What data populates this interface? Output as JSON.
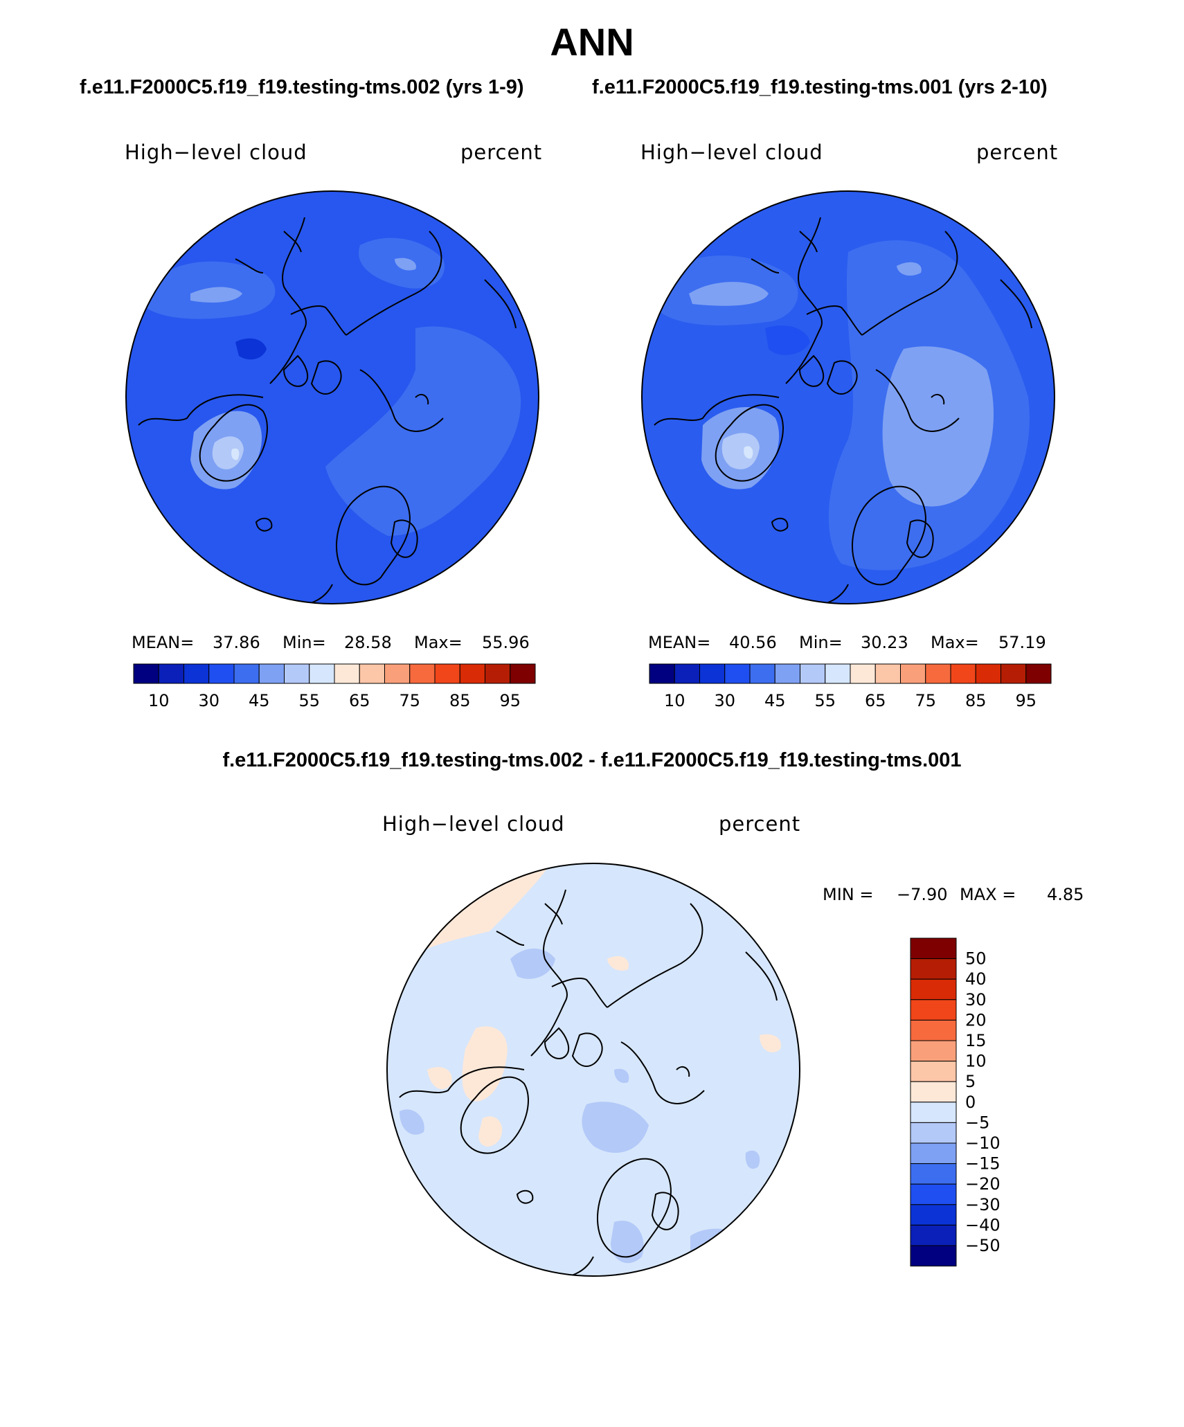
{
  "title": "ANN",
  "case_titles": {
    "left": "f.e11.F2000C5.f19_f19.testing-tms.002 (yrs 1-9)",
    "right": "f.e11.F2000C5.f19_f19.testing-tms.001 (yrs 2-10)"
  },
  "diff_title": "f.e11.F2000C5.f19_f19.testing-tms.002 - f.e11.F2000C5.f19_f19.testing-tms.001",
  "panels": [
    {
      "variable": "High−level cloud",
      "units": "percent",
      "stats": {
        "mean_label": "MEAN=",
        "mean": "37.86",
        "min_label": "Min=",
        "min": "28.58",
        "max_label": "Max=",
        "max": "55.96"
      },
      "colorbar_ticks": [
        "10",
        "30",
        "45",
        "55",
        "65",
        "75",
        "85",
        "95"
      ]
    },
    {
      "variable": "High−level cloud",
      "units": "percent",
      "stats": {
        "mean_label": "MEAN=",
        "mean": "40.56",
        "min_label": "Min=",
        "min": "30.23",
        "max_label": "Max=",
        "max": "57.19"
      },
      "colorbar_ticks": [
        "10",
        "30",
        "45",
        "55",
        "65",
        "75",
        "85",
        "95"
      ]
    }
  ],
  "diff_panel": {
    "variable": "High−level cloud",
    "units": "percent",
    "stats": {
      "min_label": "MIN =",
      "min": "−7.90",
      "max_label": "MAX =",
      "max": "4.85"
    },
    "colorbar_labels": [
      "50",
      "40",
      "30",
      "20",
      "15",
      "10",
      "5",
      "0",
      "−5",
      "−10",
      "−15",
      "−20",
      "−30",
      "−40",
      "−50"
    ]
  },
  "colors": {
    "abs_scale": [
      "#000080",
      "#0a20b8",
      "#0b33d6",
      "#1f4ff0",
      "#3d6ef0",
      "#7ea1f3",
      "#b3c9f8",
      "#d6e6fc",
      "#fde8d8",
      "#fcc6a8",
      "#f9a07a",
      "#f66a3e",
      "#f0461a",
      "#d92b06",
      "#b51e04",
      "#7e0000"
    ],
    "diff_scale_top_to_bottom": [
      "#7e0000",
      "#b51e04",
      "#d92b06",
      "#f0461a",
      "#f66a3e",
      "#f9a07a",
      "#fcc6a8",
      "#fde8d8",
      "#d6e6fc",
      "#b3c9f8",
      "#7ea1f3",
      "#3d6ef0",
      "#1f4ff0",
      "#0b33d6",
      "#0a20b8",
      "#000080"
    ],
    "map_base_left": "#2757ee",
    "map_base_right": "#2a5cef",
    "map_base_diff": "#d6e6fc"
  }
}
